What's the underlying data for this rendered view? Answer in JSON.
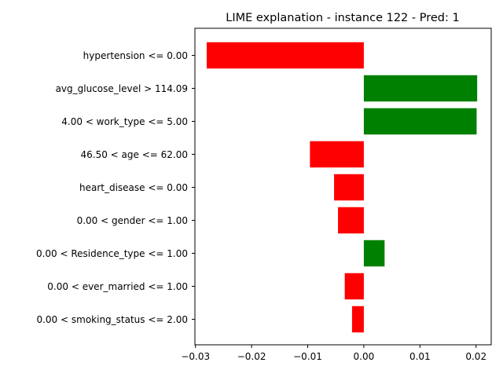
{
  "chart_data": {
    "type": "bar",
    "orientation": "horizontal",
    "title": "LIME explanation - instance 122 - Pred: 1",
    "xlabel": "",
    "ylabel": "",
    "xlim": [
      -0.0301,
      0.0227
    ],
    "xticks": [
      -0.03,
      -0.02,
      -0.01,
      0.0,
      0.01,
      0.02
    ],
    "xtick_labels": [
      "−0.03",
      "−0.02",
      "−0.01",
      "0.00",
      "0.01",
      "0.02"
    ],
    "categories": [
      "hypertension <= 0.00",
      "avg_glucose_level > 114.09",
      "4.00 < work_type <= 5.00",
      "46.50 < age <= 62.00",
      "heart_disease <= 0.00",
      "0.00 < gender <= 1.00",
      "0.00 < Residence_type <= 1.00",
      "0.00 < ever_married <= 1.00",
      "0.00 < smoking_status <= 2.00"
    ],
    "values": [
      -0.028,
      0.0202,
      0.0201,
      -0.0096,
      -0.0053,
      -0.0046,
      0.0037,
      -0.0034,
      -0.0021
    ],
    "colors": {
      "positive": "#008000",
      "negative": "#ff0000"
    },
    "grid": false,
    "legend": "none"
  }
}
